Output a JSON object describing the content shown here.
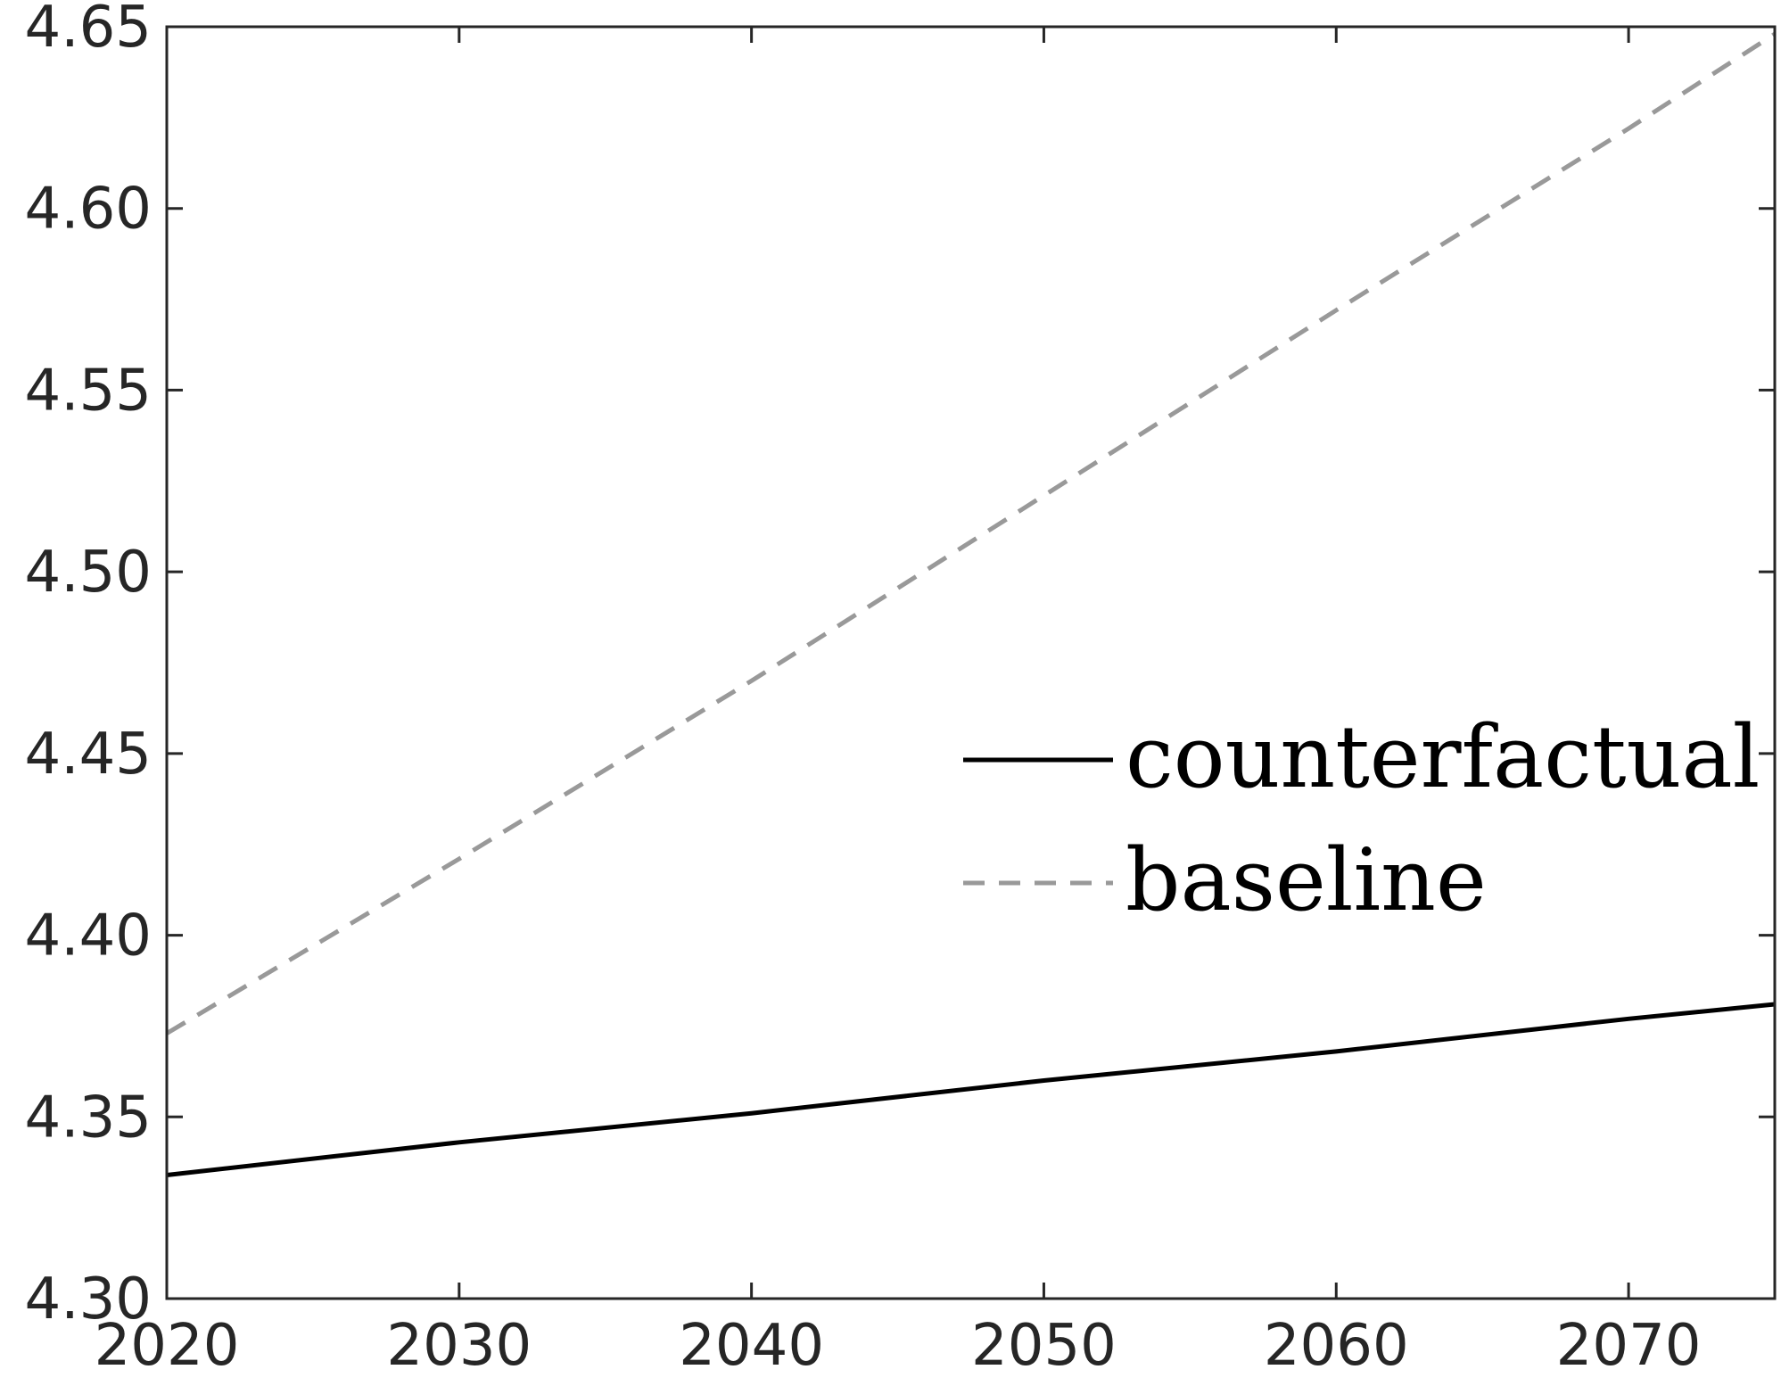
{
  "chart_data": {
    "type": "line",
    "title": "",
    "xlabel": "",
    "ylabel": "",
    "xlim": [
      2020,
      2075
    ],
    "ylim": [
      4.3,
      4.65
    ],
    "x_ticks": [
      2020,
      2030,
      2040,
      2050,
      2060,
      2070
    ],
    "x_tick_labels": [
      "2020",
      "2030",
      "2040",
      "2050",
      "2060",
      "2070"
    ],
    "y_ticks": [
      4.3,
      4.35,
      4.4,
      4.45,
      4.5,
      4.55,
      4.6,
      4.65
    ],
    "y_tick_labels": [
      "4.30",
      "4.35",
      "4.40",
      "4.45",
      "4.50",
      "4.55",
      "4.60",
      "4.65"
    ],
    "grid": false,
    "legend_position": "center-right",
    "series": [
      {
        "name": "counterfactual",
        "style": "solid",
        "color": "#000000",
        "x": [
          2020,
          2030,
          2040,
          2050,
          2060,
          2070,
          2075
        ],
        "y": [
          4.334,
          4.343,
          4.351,
          4.36,
          4.368,
          4.377,
          4.381
        ]
      },
      {
        "name": "baseline",
        "style": "dashed",
        "color": "#999999",
        "x": [
          2020,
          2030,
          2040,
          2050,
          2060,
          2070,
          2075
        ],
        "y": [
          4.373,
          4.421,
          4.47,
          4.521,
          4.572,
          4.622,
          4.648
        ]
      }
    ]
  }
}
